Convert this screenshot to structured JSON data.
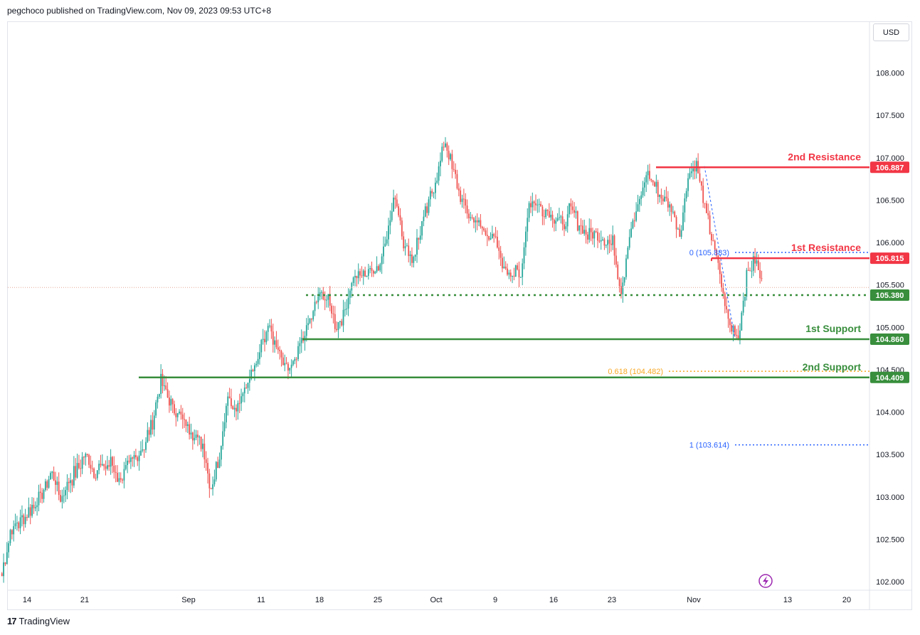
{
  "header": {
    "publisher": "pegchoco published on TradingView.com, Nov 09, 2023 09:53 UTC+8"
  },
  "currency_button": "USD",
  "footer": {
    "brand": "TradingView",
    "logo_mark": "17"
  },
  "colors": {
    "up": "#26a69a",
    "down": "#ef5350",
    "resistance": "#f23645",
    "support": "#388e3c",
    "fib_blue": "#2962ff",
    "fib_gold": "#f9a825",
    "last_price": "#e4a797"
  },
  "chart_data": {
    "type": "candlestick",
    "instrument_currency": "USD",
    "ylim": [
      101.9,
      108.6
    ],
    "y_ticks": [
      "102.000",
      "102.500",
      "103.000",
      "103.500",
      "104.000",
      "104.500",
      "105.000",
      "105.500",
      "106.000",
      "106.500",
      "107.000",
      "107.500",
      "108.000"
    ],
    "x_ticks": [
      "14",
      "21",
      "Sep",
      "11",
      "18",
      "25",
      "Oct",
      "9",
      "16",
      "23",
      "Nov",
      "13",
      "20"
    ],
    "levels": [
      {
        "name": "2nd Resistance",
        "value": 106.887,
        "tag": "106.887",
        "kind": "resistance"
      },
      {
        "name": "1st Resistance",
        "value": 105.815,
        "tag": "105.815",
        "kind": "resistance"
      },
      {
        "name": "",
        "value": 105.38,
        "tag": "105.380",
        "kind": "pivot"
      },
      {
        "name": "1st Support",
        "value": 104.86,
        "tag": "104.860",
        "kind": "support"
      },
      {
        "name": "2nd Support",
        "value": 104.409,
        "tag": "104.409",
        "kind": "support"
      }
    ],
    "fibonacci": [
      {
        "label": "0 (105.883)",
        "value": 105.883
      },
      {
        "label": "0.618 (104.482)",
        "value": 104.482
      },
      {
        "label": "1 (103.614)",
        "value": 103.614
      }
    ],
    "last_price": 105.47,
    "close_path": [
      [
        "Aug 11",
        102.1
      ],
      [
        "Aug 12",
        102.6
      ],
      [
        "Aug 15",
        102.9
      ],
      [
        "Aug 17",
        103.3
      ],
      [
        "Aug 18",
        103.0
      ],
      [
        "Aug 21",
        103.5
      ],
      [
        "Aug 22",
        103.3
      ],
      [
        "Aug 24",
        103.4
      ],
      [
        "Aug 25",
        103.2
      ],
      [
        "Aug 28",
        103.6
      ],
      [
        "Aug 29",
        103.9
      ],
      [
        "Aug 30",
        104.4
      ],
      [
        "Aug 31",
        104.1
      ],
      [
        "Sep 1",
        104.0
      ],
      [
        "Sep 4",
        103.6
      ],
      [
        "Sep 5",
        103.1
      ],
      [
        "Sep 6",
        103.5
      ],
      [
        "Sep 7",
        104.2
      ],
      [
        "Sep 8",
        104.0
      ],
      [
        "Sep 11",
        104.8
      ],
      [
        "Sep 12",
        105.0
      ],
      [
        "Sep 13",
        104.7
      ],
      [
        "Sep 14",
        104.5
      ],
      [
        "Sep 15",
        104.6
      ],
      [
        "Sep 18",
        105.4
      ],
      [
        "Sep 19",
        105.3
      ],
      [
        "Sep 20",
        105.0
      ],
      [
        "Sep 21",
        105.2
      ],
      [
        "Sep 22",
        105.6
      ],
      [
        "Sep 25",
        105.7
      ],
      [
        "Sep 26",
        106.1
      ],
      [
        "Sep 27",
        106.6
      ],
      [
        "Sep 28",
        106.0
      ],
      [
        "Sep 29",
        105.8
      ],
      [
        "Oct 2",
        106.8
      ],
      [
        "Oct 3",
        107.2
      ],
      [
        "Oct 4",
        106.8
      ],
      [
        "Oct 5",
        106.5
      ],
      [
        "Oct 6",
        106.3
      ],
      [
        "Oct 9",
        106.0
      ],
      [
        "Oct 10",
        105.7
      ],
      [
        "Oct 12",
        105.6
      ],
      [
        "Oct 13",
        106.5
      ],
      [
        "Oct 16",
        106.3
      ],
      [
        "Oct 17",
        106.2
      ],
      [
        "Oct 18",
        106.4
      ],
      [
        "Oct 19",
        106.2
      ],
      [
        "Oct 20",
        106.1
      ],
      [
        "Oct 23",
        106.0
      ],
      [
        "Oct 24",
        105.4
      ],
      [
        "Oct 25",
        106.1
      ],
      [
        "Oct 26",
        106.4
      ],
      [
        "Oct 27",
        106.8
      ],
      [
        "Oct 30",
        106.4
      ],
      [
        "Oct 31",
        106.1
      ],
      [
        "Nov 1",
        106.8
      ],
      [
        "Nov 2",
        106.9
      ],
      [
        "Nov 3",
        106.4
      ],
      [
        "Nov 4",
        106.0
      ],
      [
        "Nov 6",
        105.0
      ],
      [
        "Nov 7",
        104.9
      ],
      [
        "Nov 8",
        105.6
      ],
      [
        "Nov 9",
        105.8
      ],
      [
        "Nov 10",
        105.5
      ]
    ]
  }
}
